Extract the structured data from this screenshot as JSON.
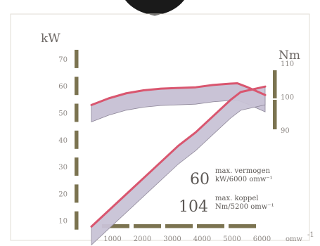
{
  "chart_data": {
    "type": "line",
    "x_unit": "omw",
    "x_ticks": [
      1000,
      2000,
      3000,
      4000,
      5000,
      6000
    ],
    "x_tick_labels": [
      "1000",
      "2000",
      "3000",
      "4000",
      "5000",
      "6000"
    ],
    "xlim": [
      1000,
      6000
    ],
    "y_left": {
      "label": "kW",
      "ticks": [
        10,
        20,
        30,
        40,
        50,
        60,
        70
      ],
      "ylim": [
        0,
        75
      ]
    },
    "y_right": {
      "label": "Nm",
      "ticks": [
        90,
        100,
        110
      ],
      "ylim": [
        88,
        112
      ]
    },
    "series": [
      {
        "axis": "left",
        "x": [
          1000,
          1500,
          2000,
          2500,
          3000,
          3500,
          4000,
          4500,
          5000,
          5300,
          6000
        ],
        "y": [
          8,
          14,
          20,
          26,
          32,
          38,
          43,
          49,
          55,
          58,
          60
        ]
      },
      {
        "axis": "right",
        "x": [
          1000,
          1500,
          2000,
          2500,
          3000,
          3500,
          4000,
          4500,
          5000,
          5200,
          5500,
          6000
        ],
        "y": [
          97.5,
          99.5,
          101,
          101.9,
          102.4,
          102.6,
          102.8,
          103.5,
          103.9,
          104,
          102.8,
          100.5
        ]
      }
    ],
    "annotations": [
      {
        "value": "60",
        "line1": "max. vermogen",
        "line2": "kW/6000 omw⁻¹"
      },
      {
        "value": "104",
        "line1": "max. koppel",
        "line2": "Nm/5200 omw⁻¹"
      }
    ]
  },
  "colors": {
    "band_fill": "#c9c3d6",
    "band_edge": "#8d8698",
    "curve": "#d9566f",
    "axis_bar": "#7b7350",
    "frame_border": "#e2ddd6",
    "bg": "#ffffff"
  }
}
